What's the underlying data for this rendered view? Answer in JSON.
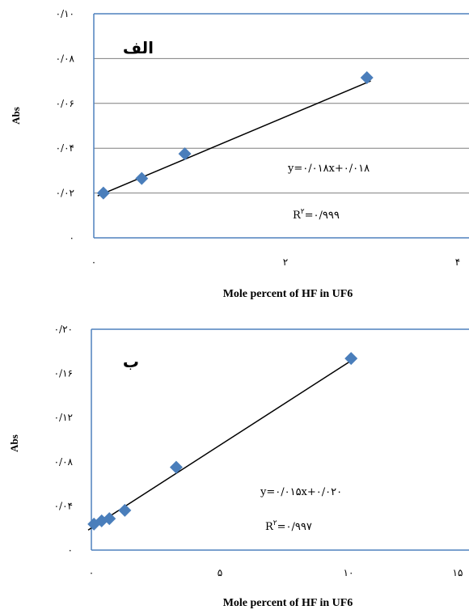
{
  "chart_data": [
    {
      "type": "scatter",
      "panel_label": "الف",
      "ylabel": "Abs",
      "xlabel": "Mole percent of HF in UF6",
      "xlim": [
        0,
        4
      ],
      "ylim": [
        0,
        0.1
      ],
      "x_ticks": [
        0,
        2,
        4
      ],
      "x_tick_labels": [
        "۰",
        "۲",
        "۴"
      ],
      "y_ticks": [
        0,
        0.02,
        0.04,
        0.06,
        0.08,
        0.1
      ],
      "y_tick_labels": [
        "۰",
        "۰/۰۲",
        "۰/۰۴",
        "۰/۰۶",
        "۰/۰۸",
        "۰/۱۰"
      ],
      "grid": true,
      "points": [
        {
          "x": 0.1,
          "y": 0.02
        },
        {
          "x": 0.5,
          "y": 0.0265
        },
        {
          "x": 0.95,
          "y": 0.0375
        },
        {
          "x": 2.85,
          "y": 0.0715
        }
      ],
      "trendline": {
        "slope": 0.018,
        "intercept": 0.018
      },
      "equation": "y=۰/۰۱۸x+۰/۰۱۸",
      "r2_prefix": "R",
      "r2_sup": "۲",
      "r2_value": "=۰/۹۹۹",
      "marker_color": "#4a7ebb",
      "axis_color": "#4f81bd"
    },
    {
      "type": "scatter",
      "panel_label": "ب",
      "ylabel": "Abs",
      "xlabel": "Mole percent of HF in UF6",
      "xlim": [
        0,
        15
      ],
      "ylim": [
        0,
        0.2
      ],
      "x_ticks": [
        0,
        5,
        10,
        15
      ],
      "x_tick_labels": [
        "۰",
        "۵",
        "۱۰",
        "۱۵"
      ],
      "y_ticks": [
        0,
        0.04,
        0.08,
        0.12,
        0.16,
        0.2
      ],
      "y_tick_labels": [
        "۰",
        "۰/۰۴",
        "۰/۰۸",
        "۰/۱۲",
        "۰/۱۶",
        "۰/۲۰"
      ],
      "grid": false,
      "points": [
        {
          "x": 0.1,
          "y": 0.0235
        },
        {
          "x": 0.4,
          "y": 0.0265
        },
        {
          "x": 0.7,
          "y": 0.0285
        },
        {
          "x": 1.3,
          "y": 0.036
        },
        {
          "x": 3.3,
          "y": 0.075
        },
        {
          "x": 10.1,
          "y": 0.1735
        }
      ],
      "trendline": {
        "slope": 0.015,
        "intercept": 0.02
      },
      "equation": "y=۰/۰۱۵x+۰/۰۲۰",
      "r2_prefix": "R",
      "r2_sup": "۲",
      "r2_value": "=۰/۹۹۷",
      "marker_color": "#4a7ebb",
      "axis_color": "#4f81bd"
    }
  ]
}
